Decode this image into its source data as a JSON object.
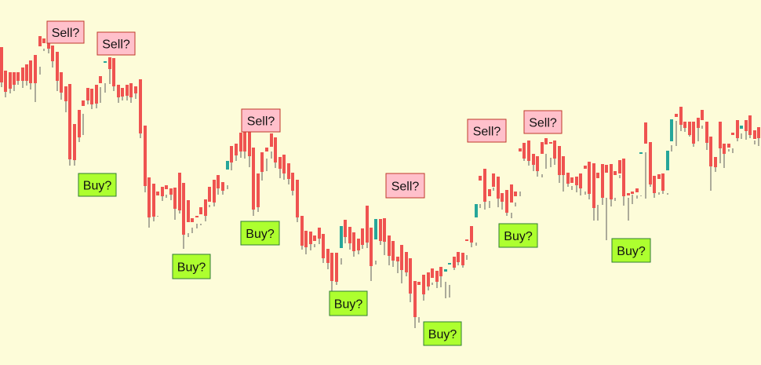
{
  "chart_data": {
    "type": "candlestick",
    "title": "",
    "xlabel": "",
    "ylabel": "",
    "ylim": [
      0,
      465
    ],
    "grid": false,
    "legend": "none",
    "colors": {
      "background": "#fdfcd9",
      "bullish": "#26a69a",
      "bearish": "#ef5350",
      "wick": "#5a5a5a",
      "sell_fill": "#ffc0cb",
      "sell_border": "#c0392b",
      "buy_fill": "#adff2f",
      "buy_border": "#2e7d32"
    },
    "candles": [
      [
        2,
        80,
        60,
        105,
        111
      ],
      [
        7,
        103,
        90,
        117,
        124
      ],
      [
        13,
        103,
        92,
        113,
        119
      ],
      [
        18,
        101,
        92,
        108,
        116
      ],
      [
        23,
        99,
        92,
        103,
        108
      ],
      [
        29,
        97,
        86,
        103,
        112
      ],
      [
        34,
        98,
        82,
        103,
        109
      ],
      [
        39,
        103,
        77,
        106,
        114
      ],
      [
        45,
        85,
        70,
        106,
        130
      ],
      [
        51,
        85,
        46,
        59,
        95
      ],
      [
        56,
        62,
        49,
        55,
        65
      ],
      [
        62,
        60,
        50,
        62,
        68
      ],
      [
        67,
        68,
        58,
        78,
        86
      ],
      [
        73,
        79,
        66,
        103,
        116
      ],
      [
        78,
        102,
        92,
        118,
        127
      ],
      [
        84,
        121,
        110,
        129,
        143
      ],
      [
        89,
        124,
        107,
        203,
        211
      ],
      [
        95,
        170,
        158,
        204,
        211
      ],
      [
        101,
        170,
        140,
        175,
        181
      ],
      [
        106,
        172,
        128,
        135,
        145
      ],
      [
        112,
        123,
        112,
        128,
        133
      ],
      [
        117,
        117,
        113,
        133,
        139
      ],
      [
        123,
        123,
        108,
        132,
        138
      ],
      [
        128,
        131,
        97,
        106,
        111
      ],
      [
        134,
        106,
        80,
        78,
        118
      ],
      [
        140,
        80,
        73,
        88,
        107
      ],
      [
        145,
        102,
        74,
        110,
        116
      ],
      [
        151,
        116,
        108,
        124,
        131
      ],
      [
        156,
        119,
        112,
        123,
        128
      ],
      [
        162,
        117,
        108,
        122,
        128
      ],
      [
        167,
        114,
        106,
        124,
        131
      ],
      [
        173,
        118,
        110,
        119,
        126
      ],
      [
        179,
        113,
        101,
        170,
        176
      ],
      [
        185,
        173,
        160,
        237,
        245
      ],
      [
        190,
        237,
        226,
        277,
        290
      ],
      [
        196,
        245,
        234,
        276,
        282
      ],
      [
        201,
        275,
        244,
        249,
        276
      ],
      [
        207,
        245,
        238,
        250,
        256
      ],
      [
        212,
        252,
        236,
        241,
        248
      ],
      [
        218,
        244,
        240,
        248,
        255
      ],
      [
        223,
        245,
        239,
        266,
        280
      ],
      [
        229,
        248,
        220,
        268,
        272
      ],
      [
        234,
        242,
        233,
        299,
        317
      ],
      [
        240,
        297,
        255,
        283,
        302
      ],
      [
        245,
        290,
        278,
        283,
        297
      ],
      [
        251,
        285,
        275,
        277,
        291
      ],
      [
        256,
        287,
        264,
        273,
        285
      ],
      [
        262,
        266,
        254,
        275,
        282
      ],
      [
        267,
        261,
        238,
        257,
        264
      ],
      [
        273,
        240,
        229,
        258,
        263
      ],
      [
        278,
        238,
        223,
        240,
        248
      ],
      [
        284,
        240,
        232,
        243,
        248
      ],
      [
        290,
        236,
        216,
        205,
        241
      ],
      [
        295,
        195,
        186,
        207,
        217
      ],
      [
        301,
        191,
        183,
        198,
        205
      ],
      [
        307,
        183,
        169,
        193,
        201
      ],
      [
        312,
        168,
        158,
        193,
        202
      ],
      [
        318,
        172,
        160,
        199,
        213
      ],
      [
        323,
        199,
        188,
        267,
        275
      ],
      [
        329,
        263,
        221,
        264,
        270
      ],
      [
        334,
        214,
        194,
        219,
        230
      ],
      [
        340,
        202,
        188,
        193,
        218
      ],
      [
        346,
        193,
        170,
        187,
        202
      ],
      [
        351,
        184,
        175,
        207,
        214
      ],
      [
        357,
        209,
        200,
        215,
        227
      ],
      [
        362,
        207,
        197,
        221,
        229
      ],
      [
        368,
        220,
        208,
        228,
        235
      ],
      [
        373,
        222,
        220,
        243,
        249
      ],
      [
        379,
        237,
        229,
        277,
        283
      ],
      [
        385,
        277,
        275,
        313,
        318
      ],
      [
        390,
        306,
        294,
        315,
        324
      ],
      [
        396,
        304,
        295,
        311,
        319
      ],
      [
        401,
        311,
        300,
        307,
        315
      ],
      [
        407,
        298,
        290,
        304,
        311
      ],
      [
        412,
        303,
        298,
        329,
        335
      ],
      [
        418,
        326,
        317,
        335,
        343
      ],
      [
        423,
        330,
        322,
        358,
        374
      ],
      [
        429,
        334,
        322,
        359,
        363
      ],
      [
        435,
        329,
        316,
        288,
        337
      ],
      [
        440,
        291,
        280,
        302,
        310
      ],
      [
        446,
        293,
        289,
        310,
        318
      ],
      [
        451,
        308,
        296,
        320,
        327
      ],
      [
        457,
        310,
        304,
        319,
        324
      ],
      [
        462,
        296,
        291,
        312,
        317
      ],
      [
        468,
        296,
        262,
        309,
        316
      ],
      [
        473,
        299,
        290,
        339,
        358
      ],
      [
        479,
        332,
        305,
        279,
        337
      ],
      [
        485,
        280,
        279,
        307,
        312
      ],
      [
        490,
        285,
        278,
        308,
        325
      ],
      [
        496,
        305,
        300,
        326,
        338
      ],
      [
        501,
        316,
        307,
        332,
        340
      ],
      [
        507,
        327,
        327,
        333,
        348
      ],
      [
        512,
        330,
        312,
        344,
        361
      ],
      [
        518,
        328,
        321,
        347,
        352
      ],
      [
        523,
        340,
        329,
        374,
        385
      ],
      [
        529,
        366,
        358,
        404,
        418
      ],
      [
        534,
        404,
        359,
        363,
        411
      ],
      [
        540,
        363,
        350,
        375,
        383
      ],
      [
        546,
        354,
        347,
        365,
        370
      ],
      [
        551,
        360,
        342,
        354,
        363
      ],
      [
        557,
        356,
        345,
        359,
        367
      ],
      [
        562,
        350,
        340,
        352,
        366
      ],
      [
        568,
        359,
        346,
        343,
        380
      ],
      [
        573,
        363,
        336,
        335,
        379
      ],
      [
        579,
        334,
        327,
        341,
        344
      ],
      [
        584,
        332,
        321,
        334,
        338
      ],
      [
        590,
        329,
        322,
        338,
        341
      ],
      [
        595,
        325,
        305,
        307,
        331
      ],
      [
        601,
        305,
        288,
        309,
        315
      ],
      [
        607,
        309,
        277,
        260,
        313
      ],
      [
        612,
        260,
        224,
        230,
        265
      ],
      [
        618,
        232,
        215,
        257,
        267
      ],
      [
        624,
        256,
        241,
        250,
        265
      ],
      [
        629,
        239,
        221,
        238,
        243
      ],
      [
        635,
        231,
        225,
        253,
        264
      ],
      [
        640,
        251,
        246,
        257,
        267
      ],
      [
        646,
        260,
        242,
        271,
        275
      ],
      [
        652,
        271,
        235,
        258,
        278
      ],
      [
        657,
        258,
        244,
        250,
        263
      ],
      [
        663,
        244,
        189,
        193,
        250
      ],
      [
        668,
        192,
        182,
        202,
        205
      ],
      [
        674,
        199,
        179,
        205,
        211
      ],
      [
        680,
        205,
        196,
        210,
        218
      ],
      [
        685,
        212,
        199,
        218,
        225
      ],
      [
        691,
        222,
        181,
        196,
        226
      ],
      [
        696,
        196,
        176,
        184,
        215
      ],
      [
        702,
        201,
        181,
        183,
        213
      ],
      [
        707,
        183,
        179,
        202,
        210
      ],
      [
        713,
        205,
        186,
        223,
        233
      ],
      [
        718,
        221,
        199,
        223,
        244
      ],
      [
        724,
        227,
        220,
        234,
        238
      ],
      [
        729,
        237,
        226,
        233,
        242
      ],
      [
        735,
        233,
        225,
        236,
        245
      ],
      [
        740,
        236,
        221,
        240,
        249
      ],
      [
        746,
        244,
        211,
        215,
        248
      ],
      [
        751,
        210,
        206,
        247,
        254
      ],
      [
        757,
        220,
        208,
        265,
        281
      ],
      [
        762,
        261,
        220,
        227,
        281
      ],
      [
        768,
        223,
        209,
        252,
        261
      ],
      [
        773,
        252,
        210,
        220,
        306
      ],
      [
        779,
        216,
        209,
        254,
        263
      ],
      [
        784,
        252,
        218,
        223,
        256
      ],
      [
        790,
        223,
        204,
        221,
        227
      ],
      [
        795,
        221,
        202,
        250,
        262
      ],
      [
        801,
        252,
        246,
        249,
        281
      ],
      [
        806,
        248,
        244,
        247,
        260
      ],
      [
        812,
        249,
        240,
        245,
        253
      ],
      [
        817,
        249,
        195,
        194,
        250
      ],
      [
        823,
        194,
        156,
        183,
        253
      ],
      [
        829,
        183,
        181,
        235,
        238
      ],
      [
        834,
        232,
        224,
        246,
        252
      ],
      [
        840,
        245,
        222,
        228,
        248
      ],
      [
        845,
        229,
        221,
        243,
        247
      ],
      [
        851,
        246,
        217,
        192,
        248
      ],
      [
        856,
        185,
        180,
        152,
        193
      ],
      [
        862,
        154,
        145,
        149,
        186
      ],
      [
        868,
        149,
        136,
        159,
        167
      ],
      [
        873,
        160,
        155,
        163,
        168
      ],
      [
        879,
        165,
        155,
        172,
        174
      ],
      [
        884,
        162,
        155,
        183,
        187
      ],
      [
        890,
        157,
        150,
        163,
        180
      ],
      [
        895,
        160,
        140,
        153,
        164
      ],
      [
        901,
        163,
        155,
        182,
        191
      ],
      [
        906,
        180,
        174,
        212,
        243
      ],
      [
        912,
        212,
        200,
        213,
        219
      ],
      [
        918,
        186,
        155,
        189,
        208
      ],
      [
        923,
        188,
        183,
        196,
        214
      ],
      [
        929,
        190,
        183,
        188,
        193
      ],
      [
        934,
        189,
        169,
        172,
        195
      ],
      [
        940,
        171,
        153,
        176,
        180
      ],
      [
        945,
        170,
        164,
        160,
        177
      ],
      [
        951,
        160,
        153,
        167,
        178
      ],
      [
        956,
        160,
        147,
        172,
        176
      ],
      [
        962,
        179,
        166,
        177,
        184
      ],
      [
        967,
        173,
        162,
        176,
        186
      ]
    ],
    "annotations": [
      {
        "type": "sell",
        "text": "Sell?"
      },
      {
        "type": "sell",
        "text": "Sell?"
      },
      {
        "type": "buy",
        "text": "Buy?"
      },
      {
        "type": "buy",
        "text": "Buy?"
      },
      {
        "type": "sell",
        "text": "Sell?"
      },
      {
        "type": "buy",
        "text": "Buy?"
      },
      {
        "type": "buy",
        "text": "Buy?"
      },
      {
        "type": "sell",
        "text": "Sell?"
      },
      {
        "type": "buy",
        "text": "Buy?"
      },
      {
        "type": "sell",
        "text": "Sell?"
      },
      {
        "type": "buy",
        "text": "Buy?"
      },
      {
        "type": "sell",
        "text": "Sell?"
      },
      {
        "type": "buy",
        "text": "Buy?"
      }
    ]
  }
}
